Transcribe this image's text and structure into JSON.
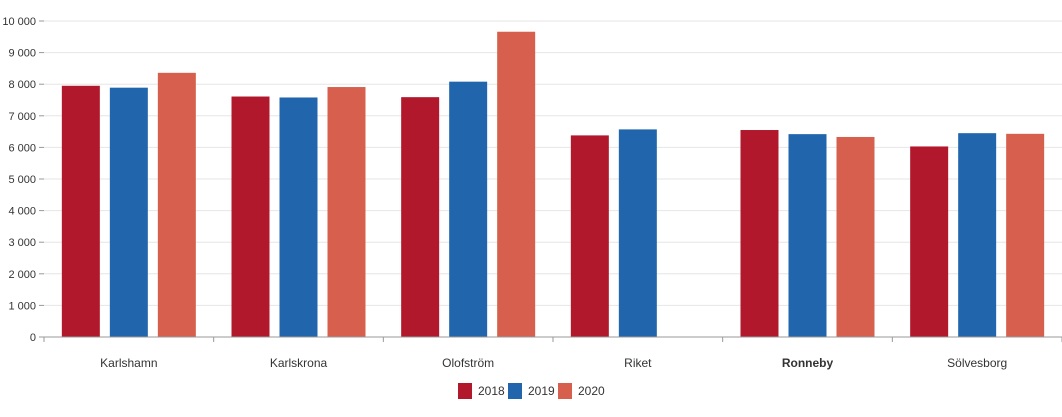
{
  "chart_data": {
    "type": "bar",
    "title": "",
    "xlabel": "",
    "ylabel": "",
    "categories": [
      "Karlshamn",
      "Karlskrona",
      "Olofström",
      "Riket",
      "Ronneby",
      "Sölvesborg"
    ],
    "highlighted_category": "Ronneby",
    "series": [
      {
        "name": "2018",
        "color": "#b2182b",
        "values": [
          7950,
          7610,
          7590,
          6380,
          6550,
          6030
        ]
      },
      {
        "name": "2019",
        "color": "#2166ac",
        "values": [
          7890,
          7580,
          8080,
          6570,
          6420,
          6450
        ]
      },
      {
        "name": "2020",
        "color": "#d6604d",
        "values": [
          8360,
          7910,
          9660,
          null,
          6330,
          6430
        ]
      }
    ],
    "ylim": [
      0,
      10000
    ],
    "y_ticks": [
      0,
      1000,
      2000,
      3000,
      4000,
      5000,
      6000,
      7000,
      8000,
      9000,
      10000
    ],
    "y_tick_labels": [
      "0",
      "1 000",
      "2 000",
      "3 000",
      "4 000",
      "5 000",
      "6 000",
      "7 000",
      "8 000",
      "9 000",
      "10 000"
    ],
    "grid": true,
    "legend_position": "bottom-center"
  }
}
